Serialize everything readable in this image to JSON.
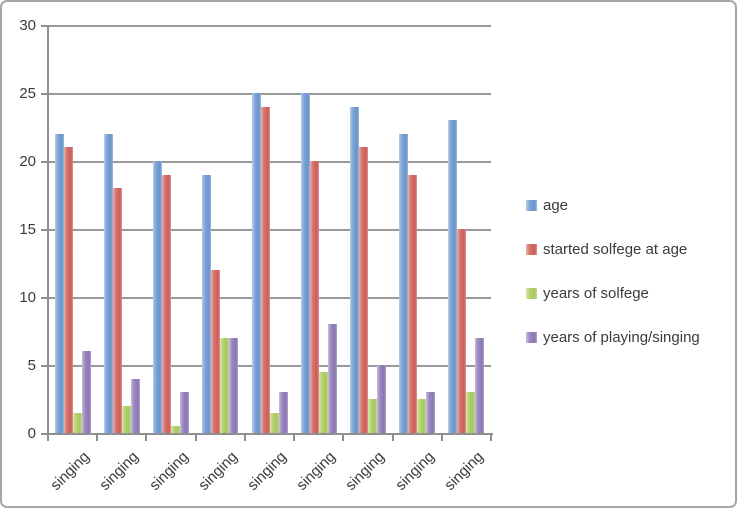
{
  "chart": {
    "frame_border_color": "#a6a6a6",
    "background": "#ffffff",
    "axis_color": "#8f8f8f",
    "gridline_color": "#989898",
    "text_color": "#3b3b3b"
  },
  "chart_data": {
    "type": "bar",
    "title": "",
    "xlabel": "",
    "ylabel": "",
    "categories": [
      "singing",
      "singing",
      "singing",
      "singing",
      "singing",
      "singing",
      "singing",
      "singing",
      "singing"
    ],
    "series": [
      {
        "name": "age",
        "color": "#6f9cd2",
        "values": [
          22,
          22,
          20,
          19,
          25,
          25,
          24,
          22,
          23
        ]
      },
      {
        "name": "started solfege at age",
        "color": "#d5635e",
        "values": [
          21,
          18,
          19,
          12,
          24,
          20,
          21,
          19,
          15
        ]
      },
      {
        "name": "years of solfege",
        "color": "#aecf63",
        "values": [
          1.5,
          2,
          0.5,
          7,
          1.5,
          4.5,
          2.5,
          2.5,
          3
        ]
      },
      {
        "name": "years of playing/singing",
        "color": "#917cba",
        "values": [
          6,
          4,
          3,
          7,
          3,
          8,
          5,
          3,
          7
        ]
      }
    ],
    "ylim": [
      0,
      30
    ],
    "yticks": [
      0,
      5,
      10,
      15,
      20,
      25,
      30
    ],
    "grid": true,
    "legend_position": "right",
    "category_label_rotation_deg": -45
  }
}
